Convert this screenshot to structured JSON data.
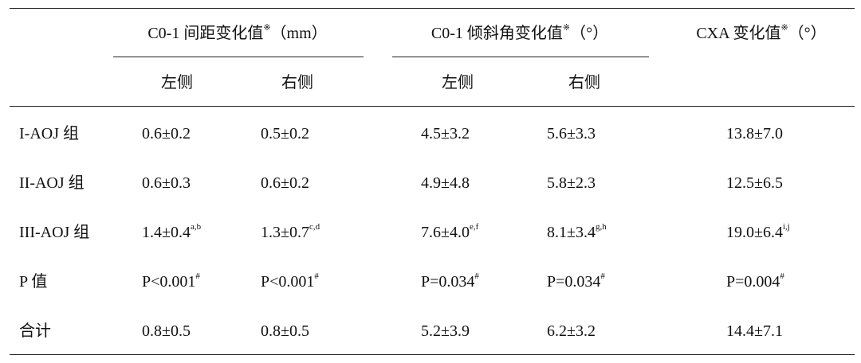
{
  "header": {
    "group1": {
      "title": "C0-1 间距变化值",
      "mark": "※",
      "unit": "（mm）"
    },
    "group2": {
      "title": "C0-1 倾斜角变化值",
      "mark": "※",
      "unit": "（°）"
    },
    "group3": {
      "title": "CXA 变化值",
      "mark": "※",
      "unit": "（°）"
    },
    "sub": {
      "g1_left": "左侧",
      "g1_right": "右侧",
      "g2_left": "左侧",
      "g2_right": "右侧"
    }
  },
  "rows": [
    {
      "label": "I-AOJ 组",
      "c1": {
        "v": "0.6±0.2",
        "s": ""
      },
      "c2": {
        "v": "0.5±0.2",
        "s": ""
      },
      "c3": {
        "v": "4.5±3.2",
        "s": ""
      },
      "c4": {
        "v": "5.6±3.3",
        "s": ""
      },
      "c5": {
        "v": "13.8±7.0",
        "s": ""
      }
    },
    {
      "label": "II-AOJ 组",
      "c1": {
        "v": "0.6±0.3",
        "s": ""
      },
      "c2": {
        "v": "0.6±0.2",
        "s": ""
      },
      "c3": {
        "v": "4.9±4.8",
        "s": ""
      },
      "c4": {
        "v": "5.8±2.3",
        "s": ""
      },
      "c5": {
        "v": "12.5±6.5",
        "s": ""
      }
    },
    {
      "label": "III-AOJ 组",
      "c1": {
        "v": "1.4±0.4",
        "s": "a,b"
      },
      "c2": {
        "v": "1.3±0.7",
        "s": "c,d"
      },
      "c3": {
        "v": "7.6±4.0",
        "s": "e,f"
      },
      "c4": {
        "v": "8.1±3.4",
        "s": "g,h"
      },
      "c5": {
        "v": "19.0±6.4",
        "s": "i,j"
      }
    },
    {
      "label": "P 值",
      "c1": {
        "v": "P<0.001",
        "s": "#"
      },
      "c2": {
        "v": "P<0.001",
        "s": "#"
      },
      "c3": {
        "v": "P=0.034",
        "s": "#"
      },
      "c4": {
        "v": "P=0.034",
        "s": "#"
      },
      "c5": {
        "v": "P=0.004",
        "s": "#"
      }
    },
    {
      "label": "合计",
      "c1": {
        "v": "0.8±0.5",
        "s": ""
      },
      "c2": {
        "v": "0.8±0.5",
        "s": ""
      },
      "c3": {
        "v": "5.2±3.9",
        "s": ""
      },
      "c4": {
        "v": "6.2±3.2",
        "s": ""
      },
      "c5": {
        "v": "14.4±7.1",
        "s": ""
      }
    }
  ]
}
